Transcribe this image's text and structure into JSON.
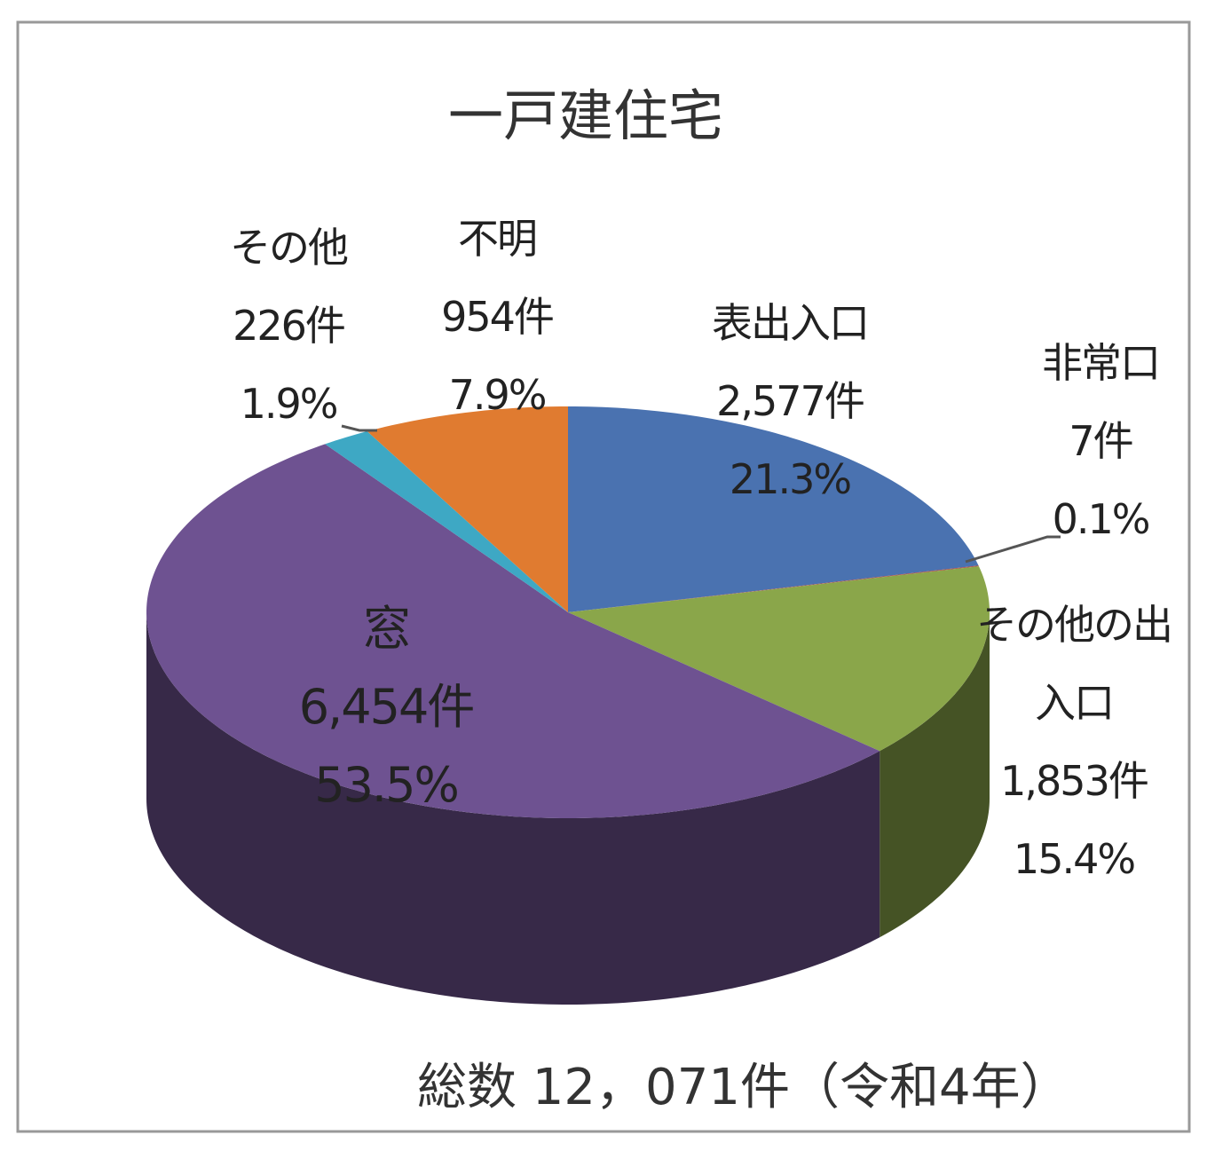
{
  "chart_data": {
    "type": "pie",
    "title": "一戸建住宅",
    "categories": [
      "表出入口",
      "非常口",
      "その他の出入口",
      "窓",
      "その他",
      "不明"
    ],
    "values": [
      2577,
      7,
      1853,
      6454,
      226,
      954
    ],
    "value_labels": [
      "2,577件",
      "7件",
      "1,853件",
      "6,454件",
      "226件",
      "954件"
    ],
    "percent_labels": [
      "21.3%",
      "0.1%",
      "15.4%",
      "53.5%",
      "1.9%",
      "7.9%"
    ],
    "colors": [
      "#4a72b0",
      "#b04a48",
      "#8aa64a",
      "#6e5291",
      "#3ea8c4",
      "#e07b30"
    ],
    "footnote": "総数 12，071件（令和4年）"
  }
}
